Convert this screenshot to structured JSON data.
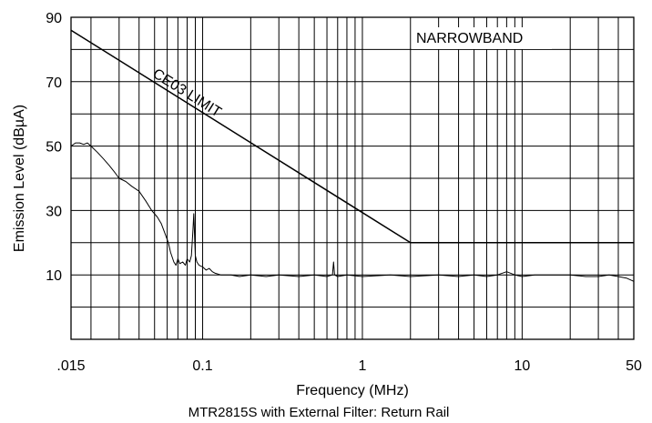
{
  "chart_data": {
    "type": "line",
    "xscale": "log",
    "xlim": [
      0.015,
      50
    ],
    "ylim": [
      -10,
      90
    ],
    "xlabel": "Frequency (MHz)",
    "ylabel": "Emission Level (dBµA)",
    "caption": "MTR2815S with External Filter: Return Rail",
    "grid": true,
    "xticks": [
      {
        "value": 0.015,
        "label": ".015"
      },
      {
        "value": 0.1,
        "label": "0.1"
      },
      {
        "value": 1,
        "label": "1"
      },
      {
        "value": 10,
        "label": "10"
      },
      {
        "value": 50,
        "label": "50"
      }
    ],
    "yticks": [
      {
        "value": 10,
        "label": "10"
      },
      {
        "value": 30,
        "label": "30"
      },
      {
        "value": 50,
        "label": "50"
      },
      {
        "value": 70,
        "label": "70"
      },
      {
        "value": 90,
        "label": "90"
      }
    ],
    "annotations": {
      "narrowband": "NARROWBAND",
      "limit_label": "CE03 LIMIT"
    },
    "series": [
      {
        "name": "CE03 LIMIT",
        "x": [
          0.015,
          2,
          50
        ],
        "y": [
          86,
          20,
          20
        ]
      },
      {
        "x": [
          0.015,
          0.016,
          0.017,
          0.018,
          0.019,
          0.02,
          0.022,
          0.024,
          0.026,
          0.028,
          0.03,
          0.033,
          0.036,
          0.04,
          0.044,
          0.048,
          0.052,
          0.055,
          0.058,
          0.061,
          0.063,
          0.066,
          0.068,
          0.07,
          0.072,
          0.075,
          0.078,
          0.08,
          0.083,
          0.085,
          0.087,
          0.088,
          0.089,
          0.09,
          0.092,
          0.095,
          0.1,
          0.105,
          0.11,
          0.115,
          0.12,
          0.13,
          0.14,
          0.15,
          0.17,
          0.2,
          0.25,
          0.3,
          0.4,
          0.5,
          0.6,
          0.65,
          0.66,
          0.67,
          0.7,
          0.8,
          1,
          1.5,
          2,
          3,
          4,
          5,
          6,
          7,
          8,
          9,
          10,
          12,
          15,
          20,
          25,
          30,
          35,
          40,
          45,
          50
        ],
        "y": [
          50,
          51,
          51,
          50.5,
          51,
          50,
          48,
          46,
          44,
          42,
          40,
          39,
          37.5,
          36,
          33,
          30,
          28,
          26,
          23,
          20,
          17,
          14,
          13,
          15,
          13.5,
          14,
          13,
          15,
          14,
          16,
          24,
          29,
          22,
          16,
          14,
          13,
          12.5,
          11.5,
          12,
          11,
          10.5,
          10,
          10,
          10,
          9.5,
          10,
          9.5,
          10,
          9.5,
          10,
          9.5,
          10,
          14,
          10,
          9.5,
          10,
          9.5,
          10,
          9.5,
          10,
          9.5,
          10,
          9.5,
          10,
          11,
          10,
          9.5,
          10,
          10,
          10,
          9.5,
          9.5,
          10,
          9.5,
          9,
          8
        ]
      }
    ]
  }
}
